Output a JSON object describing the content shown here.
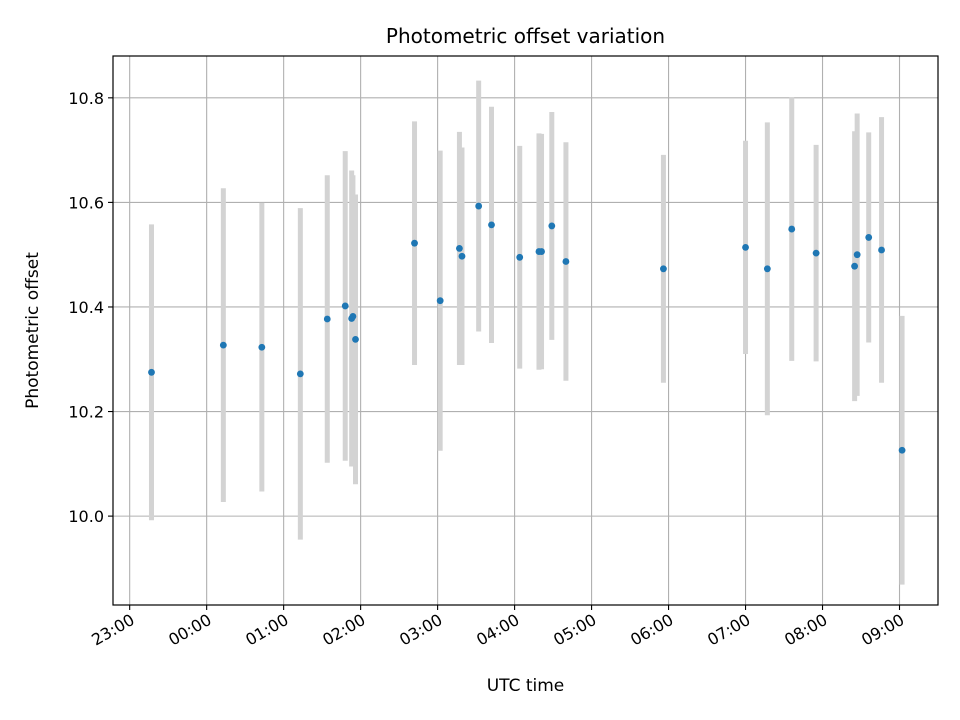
{
  "chart_data": {
    "type": "scatter",
    "title": "Photometric offset variation",
    "xlabel": "UTC time",
    "ylabel": "Photometric offset",
    "x_axis": "time",
    "xlim": [
      "22:47",
      "09:30"
    ],
    "ylim": [
      9.83,
      10.88
    ],
    "grid": true,
    "xticks": [
      "23:00",
      "00:00",
      "01:00",
      "02:00",
      "03:00",
      "04:00",
      "05:00",
      "06:00",
      "07:00",
      "08:00",
      "09:00"
    ],
    "yticks": [
      "10.0",
      "10.2",
      "10.4",
      "10.6",
      "10.8"
    ],
    "series": [
      {
        "marker_color": "#1f77b4",
        "errorbar_color": "#d3d3d3",
        "points": [
          {
            "x": "23:17",
            "y": 10.275,
            "err": 0.283
          },
          {
            "x": "00:13",
            "y": 10.327,
            "err": 0.3
          },
          {
            "x": "00:43",
            "y": 10.323,
            "err": 0.276
          },
          {
            "x": "01:13",
            "y": 10.272,
            "err": 0.317
          },
          {
            "x": "01:34",
            "y": 10.377,
            "err": 0.275
          },
          {
            "x": "01:48",
            "y": 10.402,
            "err": 0.296
          },
          {
            "x": "01:53",
            "y": 10.378,
            "err": 0.283
          },
          {
            "x": "01:54",
            "y": 10.382,
            "err": 0.27
          },
          {
            "x": "01:56",
            "y": 10.338,
            "err": 0.277
          },
          {
            "x": "02:42",
            "y": 10.522,
            "err": 0.233
          },
          {
            "x": "03:02",
            "y": 10.412,
            "err": 0.287
          },
          {
            "x": "03:17",
            "y": 10.512,
            "err": 0.223
          },
          {
            "x": "03:19",
            "y": 10.497,
            "err": 0.208
          },
          {
            "x": "03:32",
            "y": 10.593,
            "err": 0.24
          },
          {
            "x": "03:42",
            "y": 10.557,
            "err": 0.226
          },
          {
            "x": "04:04",
            "y": 10.495,
            "err": 0.213
          },
          {
            "x": "04:19",
            "y": 10.506,
            "err": 0.226
          },
          {
            "x": "04:21",
            "y": 10.506,
            "err": 0.225
          },
          {
            "x": "04:29",
            "y": 10.555,
            "err": 0.218
          },
          {
            "x": "04:40",
            "y": 10.487,
            "err": 0.228
          },
          {
            "x": "05:56",
            "y": 10.473,
            "err": 0.218
          },
          {
            "x": "07:00",
            "y": 10.514,
            "err": 0.204
          },
          {
            "x": "07:17",
            "y": 10.473,
            "err": 0.28
          },
          {
            "x": "07:36",
            "y": 10.549,
            "err": 0.252
          },
          {
            "x": "07:55",
            "y": 10.503,
            "err": 0.207
          },
          {
            "x": "08:25",
            "y": 10.478,
            "err": 0.258
          },
          {
            "x": "08:27",
            "y": 10.5,
            "err": 0.27
          },
          {
            "x": "08:36",
            "y": 10.533,
            "err": 0.201
          },
          {
            "x": "08:46",
            "y": 10.509,
            "err": 0.254
          },
          {
            "x": "09:02",
            "y": 10.126,
            "err": 0.257
          }
        ]
      }
    ]
  }
}
